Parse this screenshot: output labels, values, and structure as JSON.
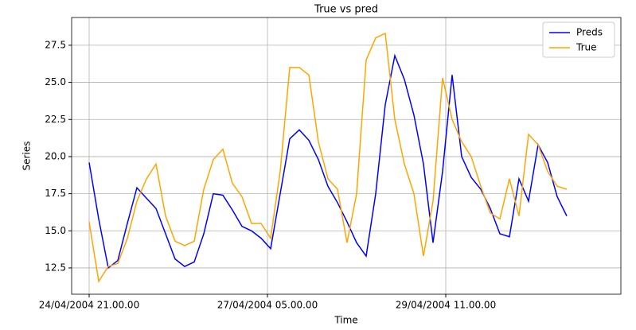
{
  "chart_data": {
    "type": "line",
    "title": "True vs pred",
    "x_label": "Time",
    "y_label": "Series",
    "x": [
      0,
      3,
      6,
      9,
      12,
      15,
      18,
      21,
      24,
      27,
      30,
      33,
      36,
      39,
      42,
      45,
      48,
      51,
      54,
      57,
      60,
      63,
      66,
      69,
      72,
      75,
      78,
      81,
      84,
      87,
      90,
      93,
      96,
      99,
      102,
      105,
      108,
      111,
      114,
      117,
      120,
      123,
      126,
      129,
      132,
      135,
      138,
      141,
      144,
      147,
      150
    ],
    "series": [
      {
        "name": "Preds",
        "color": "#0000ff",
        "values": [
          19.6,
          15.8,
          12.5,
          13.0,
          15.5,
          17.9,
          17.2,
          16.5,
          14.8,
          13.1,
          12.6,
          12.9,
          14.8,
          17.5,
          17.4,
          16.4,
          15.3,
          15.0,
          14.5,
          13.8,
          17.5,
          21.2,
          21.8,
          21.1,
          19.8,
          18.0,
          16.9,
          15.6,
          14.2,
          13.3,
          17.5,
          23.5,
          26.8,
          25.2,
          22.8,
          19.5,
          14.2,
          19.0,
          25.5,
          20.0,
          18.6,
          17.8,
          16.5,
          14.8,
          14.6,
          18.5,
          17.0,
          20.8,
          19.6,
          17.3,
          16.0
        ]
      },
      {
        "name": "True",
        "color": "#ffa500",
        "values": [
          15.6,
          11.6,
          12.6,
          12.8,
          14.5,
          17.0,
          18.5,
          19.5,
          16.0,
          14.3,
          14.0,
          14.3,
          17.8,
          19.8,
          20.5,
          18.2,
          17.3,
          15.5,
          15.5,
          14.5,
          19.0,
          26.0,
          26.0,
          25.5,
          21.0,
          18.5,
          17.8,
          14.2,
          17.5,
          26.5,
          28.0,
          28.3,
          22.5,
          19.5,
          17.5,
          13.3,
          17.0,
          25.3,
          22.5,
          21.0,
          20.0,
          18.0,
          16.2,
          15.8,
          18.5,
          16.0,
          21.5,
          20.8,
          19.0,
          18.0,
          17.8
        ]
      }
    ],
    "xlim": [
      -5.5,
      167
    ],
    "xticks": [
      {
        "value": 0,
        "label": "24/04/2004 21.00.00"
      },
      {
        "value": 56,
        "label": "27/04/2004 05.00.00"
      },
      {
        "value": 112,
        "label": "29/04/2004 11.00.00"
      }
    ],
    "ylim": [
      10.73,
      29.37
    ],
    "yticks": [
      12.5,
      {
        "value": 15,
        "label": "15.0"
      },
      17.5,
      {
        "value": 20,
        "label": "20.0"
      },
      22.5,
      {
        "value": 25,
        "label": "25.0"
      },
      27.5
    ],
    "grid": true,
    "legend": "upper right"
  }
}
